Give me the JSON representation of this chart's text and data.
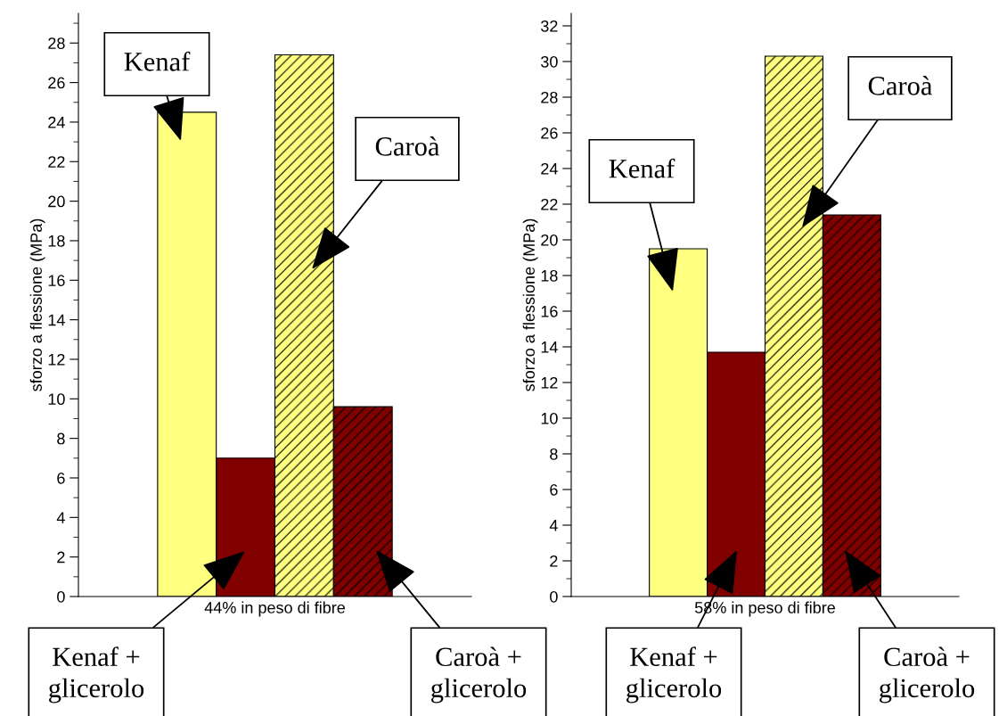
{
  "chart_data": [
    {
      "type": "bar",
      "categories": [
        "44% in peso di fibre"
      ],
      "ylabel": "sforzo a flessione (MPa)",
      "ylim": [
        0,
        29.5
      ],
      "yticks": [
        0,
        {
          "value": 1,
          "label": null
        },
        2,
        {
          "value": 3,
          "label": null
        },
        4,
        {
          "value": 5,
          "label": null
        },
        6,
        {
          "value": 7,
          "label": null
        },
        8,
        {
          "value": 9,
          "label": null
        },
        10,
        {
          "value": 11,
          "label": null
        },
        12,
        {
          "value": 13,
          "label": null
        },
        14,
        {
          "value": 15,
          "label": null
        },
        16,
        {
          "value": 17,
          "label": null
        },
        18,
        {
          "value": 19,
          "label": null
        },
        20,
        {
          "value": 21,
          "label": null
        },
        22,
        {
          "value": 23,
          "label": null
        },
        24,
        {
          "value": 25,
          "label": null
        },
        26,
        {
          "value": 27,
          "label": null
        },
        28,
        {
          "value": 29,
          "label": null
        }
      ],
      "grid": false,
      "series": [
        {
          "name": "Kenaf",
          "color": "#ffff80",
          "values": [
            24.5
          ]
        },
        {
          "name": "Kenaf +\nglicerolo",
          "color": "#800000",
          "values": [
            7.0
          ]
        },
        {
          "name": "Caroà",
          "color": "#ffff80",
          "values": [
            27.4
          ]
        },
        {
          "name": "Caroà +\nglicerolo",
          "color": "#800000",
          "values": [
            9.6
          ]
        }
      ]
    },
    {
      "type": "bar",
      "categories": [
        "58% in peso di fibre"
      ],
      "ylabel": "sforzo a flessione (MPa)",
      "ylim": [
        0,
        32.7
      ],
      "yticks": [
        0,
        {
          "value": 1,
          "label": null
        },
        2,
        {
          "value": 3,
          "label": null
        },
        4,
        {
          "value": 5,
          "label": null
        },
        6,
        {
          "value": 7,
          "label": null
        },
        8,
        {
          "value": 9,
          "label": null
        },
        10,
        {
          "value": 11,
          "label": null
        },
        12,
        {
          "value": 13,
          "label": null
        },
        14,
        {
          "value": 15,
          "label": null
        },
        16,
        {
          "value": 17,
          "label": null
        },
        18,
        {
          "value": 19,
          "label": null
        },
        20,
        {
          "value": 21,
          "label": null
        },
        22,
        {
          "value": 23,
          "label": null
        },
        24,
        {
          "value": 25,
          "label": null
        },
        26,
        {
          "value": 27,
          "label": null
        },
        28,
        {
          "value": 29,
          "label": null
        },
        30,
        {
          "value": 31,
          "label": null
        },
        32
      ],
      "grid": false,
      "series": [
        {
          "name": "Kenaf",
          "color": "#ffff80",
          "values": [
            19.5
          ]
        },
        {
          "name": "Kenaf +\nglicerolo",
          "color": "#800000",
          "values": [
            13.7
          ]
        },
        {
          "name": "Caroà",
          "color": "#ffff80",
          "values": [
            30.3
          ]
        },
        {
          "name": "Caroà +\nglicerolo",
          "color": "#800000",
          "values": [
            21.4
          ]
        }
      ]
    }
  ]
}
